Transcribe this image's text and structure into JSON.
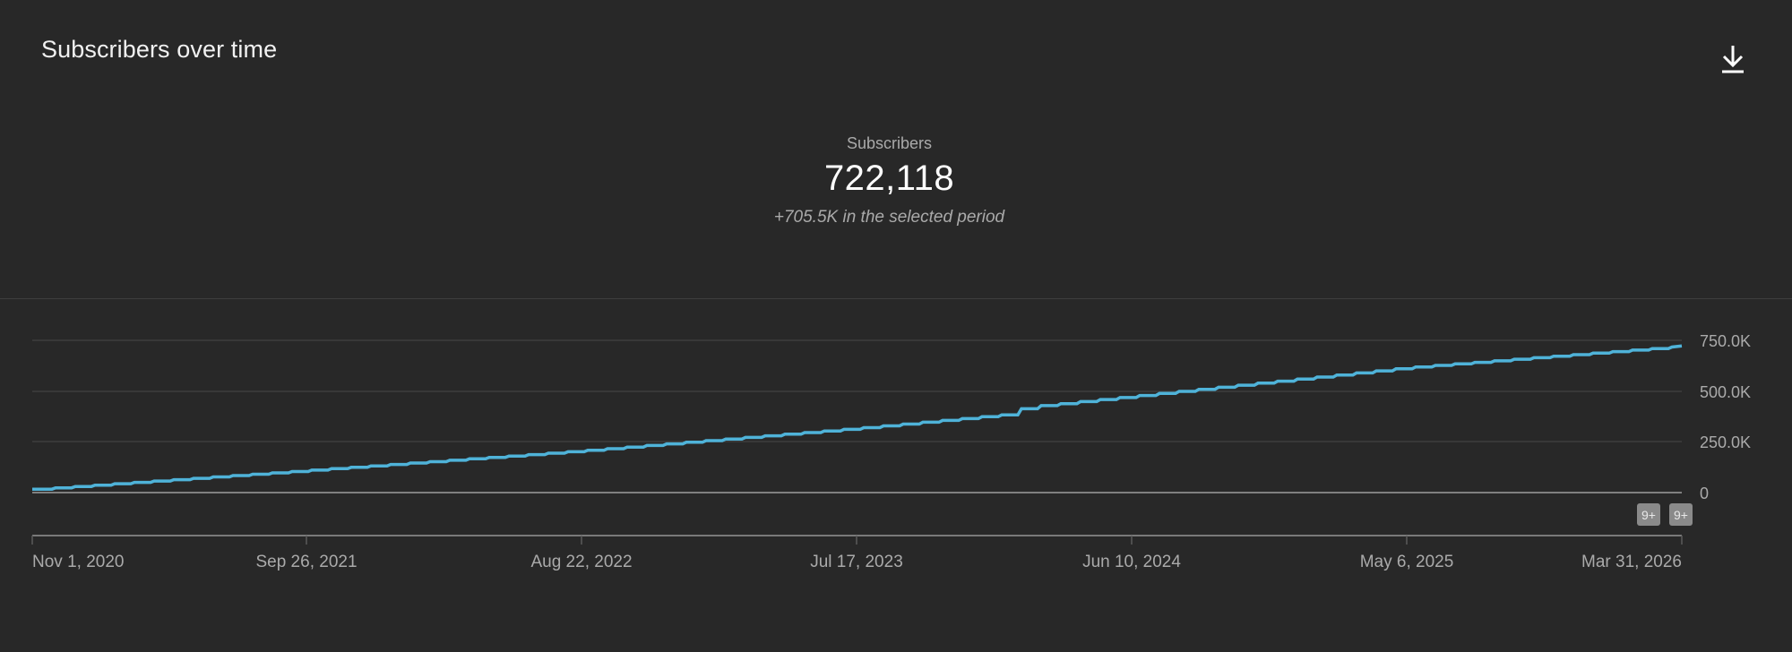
{
  "header": {
    "title": "Subscribers over time",
    "download_icon": "download-icon"
  },
  "summary": {
    "metric_label": "Subscribers",
    "metric_value": "722,118",
    "metric_delta": "+705.5K in the selected period"
  },
  "badges": [
    {
      "label": "9+"
    },
    {
      "label": "9+"
    }
  ],
  "colors": {
    "background": "#282828",
    "line": "#4fb3d9",
    "gridline": "#3d3d3d",
    "baseline": "#9e9e9e",
    "axis_text": "#aaaaaa"
  },
  "chart_data": {
    "type": "line",
    "title": "Subscribers over time",
    "xlabel": "",
    "ylabel": "Subscribers",
    "x_tick_labels": [
      "Nov 1, 2020",
      "Sep 26, 2021",
      "Aug 22, 2022",
      "Jul 17, 2023",
      "Jun 10, 2024",
      "May 6, 2025",
      "Mar 31, 2026"
    ],
    "y_tick_labels": [
      "0",
      "250.0K",
      "500.0K",
      "750.0K"
    ],
    "y_ticks": [
      0,
      250000,
      500000,
      750000
    ],
    "ylim": [
      0,
      750000
    ],
    "grid": true,
    "legend": "none",
    "x": [
      "Nov 1, 2020",
      "Sep 26, 2021",
      "Aug 22, 2022",
      "Jul 17, 2023",
      "Jan 2024",
      "Feb 2024",
      "Jun 10, 2024",
      "May 6, 2025",
      "Mar 31, 2026"
    ],
    "series": [
      {
        "name": "Subscribers",
        "values": [
          16600,
          110000,
          207000,
          318000,
          385000,
          420000,
          476000,
          617000,
          722118
        ]
      }
    ],
    "total": 722118,
    "change_in_period": "+705.5K"
  }
}
